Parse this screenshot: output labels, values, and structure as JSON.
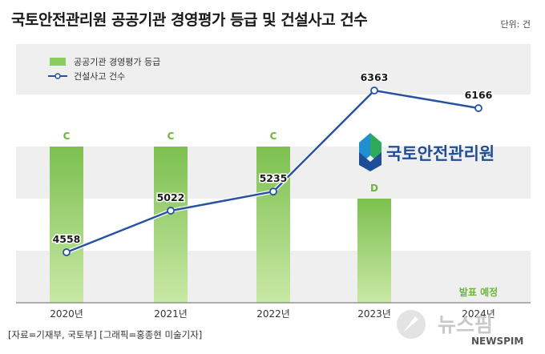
{
  "header": {
    "title": "국토안전관리원 공공기관 경영평가 등급 및 건설사고 건수",
    "unit": "단위: 건"
  },
  "source": "[자료=기재부, 국토부] [그래픽=홍종현 미술기자]",
  "logo": {
    "name": "국토안전관리원"
  },
  "watermark": {
    "name": "뉴스핌",
    "sub": "NEWSPIM"
  },
  "colors": {
    "bar_top": "#7cc04f",
    "bar_bottom": "#c9e8a6",
    "line": "#2653a2",
    "band": "#efefef",
    "grade": "#6fb43c"
  },
  "chart_data": {
    "type": "bar",
    "categories": [
      "2020년",
      "2021년",
      "2022년",
      "2023년",
      "2024년"
    ],
    "series": [
      {
        "name": "공공기관 경영평가 등급",
        "type": "bar",
        "grades": [
          "C",
          "C",
          "C",
          "D",
          null
        ],
        "note": "발표 예정"
      },
      {
        "name": "건설사고 건수",
        "type": "line",
        "values": [
          4558,
          5022,
          5235,
          6363,
          6166
        ]
      }
    ],
    "legend_position": "top-left",
    "grid": false
  }
}
